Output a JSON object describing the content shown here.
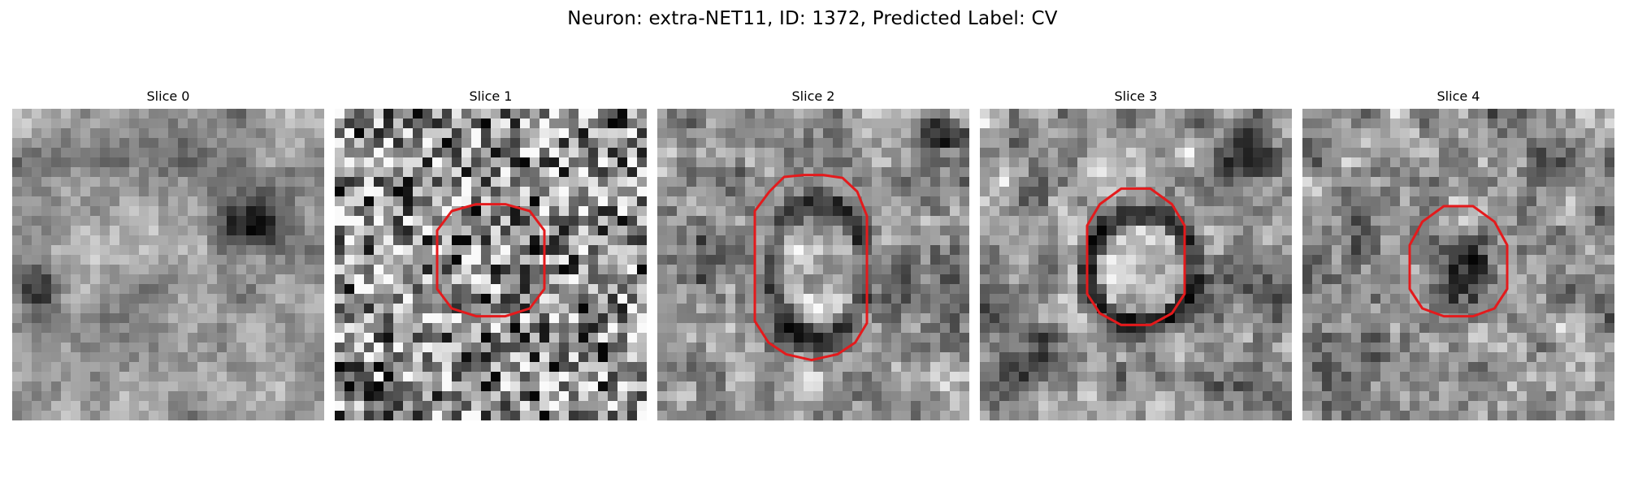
{
  "figure": {
    "title": "Neuron: extra-NET11, ID: 1372, Predicted Label: CV"
  },
  "panels": [
    {
      "title": "Slice 0",
      "contour": "none",
      "interior_tone": "light",
      "ring_tone": "none"
    },
    {
      "title": "Slice 1",
      "contour": "small",
      "interior_tone": "mid-gray",
      "ring_tone": "faint"
    },
    {
      "title": "Slice 2",
      "contour": "tall",
      "interior_tone": "light",
      "ring_tone": "dark"
    },
    {
      "title": "Slice 3",
      "contour": "medium",
      "interior_tone": "light",
      "ring_tone": "dark"
    },
    {
      "title": "Slice 4",
      "contour": "small",
      "interior_tone": "dark",
      "ring_tone": "none"
    }
  ],
  "colors": {
    "contour": "#e41a1c",
    "background": "#ffffff",
    "text": "#000000"
  }
}
